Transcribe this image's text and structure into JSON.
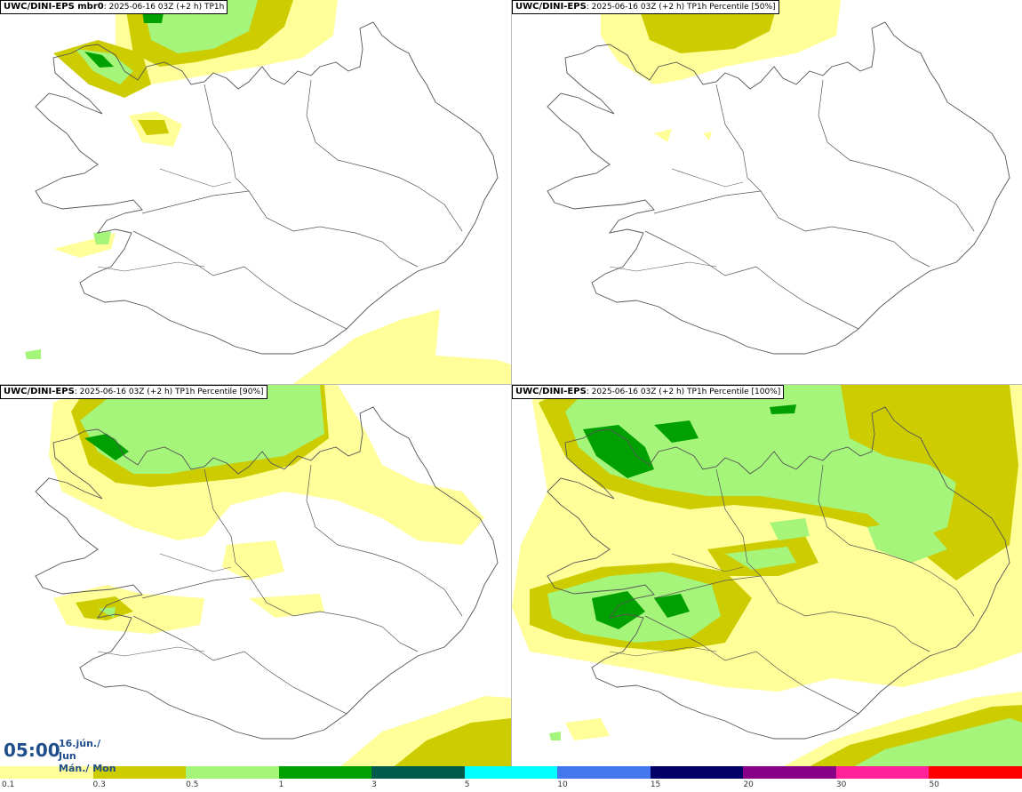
{
  "panels": [
    {
      "model": "UWC/DINI-EPS mbr0",
      "info": ": 2025-06-16 03Z (+2 h) TP1h"
    },
    {
      "model": "UWC/DINI-EPS",
      "info": ": 2025-06-16 03Z (+2 h) TP1h Percentile [50%]"
    },
    {
      "model": "UWC/DINI-EPS",
      "info": ": 2025-06-16 03Z (+2 h) TP1h Percentile [90%]"
    },
    {
      "model": "UWC/DINI-EPS",
      "info": ": 2025-06-16 03Z (+2 h) TP1h Percentile [100%]"
    }
  ],
  "time": {
    "hour": "05:00",
    "date": "16.jún./ Jun",
    "day": "Mán./ Mon"
  },
  "legend": {
    "labels": [
      "0.1",
      "0.3",
      "0.5",
      "1",
      "3",
      "5",
      "10",
      "15",
      "20",
      "30",
      "50"
    ],
    "colors": [
      "#fffe99",
      "#cccc00",
      "#a4f57a",
      "#00a000",
      "#005c4a",
      "#00ffff",
      "#4477ee",
      "#000066",
      "#880088",
      "#ff2299",
      "#ff0000"
    ]
  },
  "colors": {
    "light": "#fffe99",
    "olive": "#cccc00",
    "lightgreen": "#a4f57a",
    "green": "#00a000"
  }
}
